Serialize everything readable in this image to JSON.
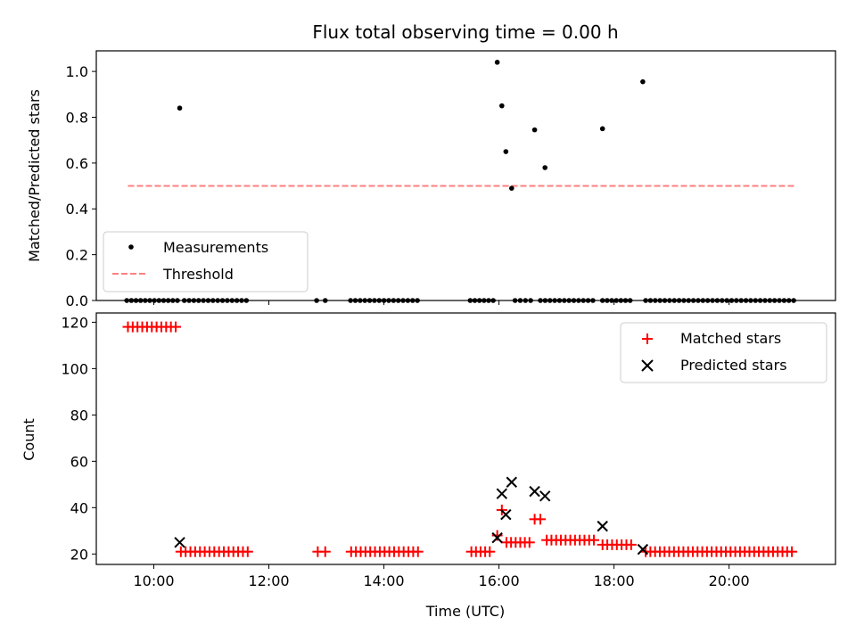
{
  "chart_data": [
    {
      "type": "scatter",
      "title": "Flux total observing time = 0.00 h",
      "xlabel": "",
      "ylabel": "Matched/Predicted stars",
      "ylim": [
        0,
        1.09
      ],
      "xlim": [
        9.0,
        21.85
      ],
      "x_ticks": [
        10,
        12,
        14,
        16,
        18,
        20
      ],
      "x_tick_labels": [],
      "y_ticks": [
        0.0,
        0.2,
        0.4,
        0.6,
        0.8,
        1.0
      ],
      "y_tick_labels": [
        "0.0",
        "0.2",
        "0.4",
        "0.6",
        "0.8",
        "1.0"
      ],
      "legend_position": "lower-left",
      "series": [
        {
          "name": "Measurements",
          "marker": "dot",
          "color": "#000000",
          "zero_runs": [
            [
              9.53,
              10.42,
              0.08
            ],
            [
              10.53,
              11.67,
              0.083
            ],
            [
              12.83,
              12.98,
              0.15
            ],
            [
              13.42,
              14.65,
              0.083
            ],
            [
              15.5,
              15.9,
              0.08
            ],
            [
              16.28,
              16.55,
              0.09
            ],
            [
              16.72,
              17.7,
              0.083
            ],
            [
              17.8,
              18.28,
              0.08
            ],
            [
              18.55,
              21.13,
              0.083
            ]
          ],
          "points": [
            [
              10.45,
              0.84
            ],
            [
              15.97,
              1.04
            ],
            [
              16.05,
              0.85
            ],
            [
              16.12,
              0.65
            ],
            [
              16.22,
              0.49
            ],
            [
              16.62,
              0.745
            ],
            [
              16.8,
              0.58
            ],
            [
              17.8,
              0.75
            ],
            [
              18.5,
              0.955
            ]
          ]
        },
        {
          "name": "Threshold",
          "marker": "dashed-line",
          "color": "#ff7f7f",
          "x": [
            9.55,
            21.15
          ],
          "y": [
            0.5,
            0.5
          ]
        }
      ]
    },
    {
      "type": "scatter",
      "title": "",
      "xlabel": "Time (UTC)",
      "ylabel": "Count",
      "ylim": [
        15.5,
        124
      ],
      "xlim": [
        9.0,
        21.85
      ],
      "x_ticks": [
        10,
        12,
        14,
        16,
        18,
        20
      ],
      "x_tick_labels": [
        "10:00",
        "12:00",
        "14:00",
        "16:00",
        "18:00",
        "20:00"
      ],
      "y_ticks": [
        20,
        40,
        60,
        80,
        100,
        120
      ],
      "y_tick_labels": [
        "20",
        "40",
        "60",
        "80",
        "100",
        "120"
      ],
      "legend_position": "upper-right",
      "series": [
        {
          "name": "Matched stars",
          "marker": "plus",
          "color": "#ff0000",
          "runs": [
            [
              9.55,
              10.38,
              0.083,
              118
            ],
            [
              10.47,
              11.65,
              0.083,
              21
            ],
            [
              12.85,
              12.98,
              0.13,
              21
            ],
            [
              13.43,
              14.63,
              0.083,
              21
            ],
            [
              15.52,
              15.9,
              0.08,
              21
            ],
            [
              16.13,
              16.55,
              0.08,
              25
            ],
            [
              16.83,
              17.73,
              0.082,
              26
            ],
            [
              17.8,
              18.3,
              0.083,
              24
            ],
            [
              18.55,
              21.12,
              0.082,
              21
            ]
          ],
          "points": [
            [
              15.97,
              28
            ],
            [
              16.05,
              39
            ],
            [
              16.62,
              35
            ],
            [
              16.72,
              35
            ]
          ]
        },
        {
          "name": "Predicted stars",
          "marker": "x",
          "color": "#000000",
          "points": [
            [
              10.45,
              25
            ],
            [
              15.97,
              27
            ],
            [
              16.05,
              46
            ],
            [
              16.12,
              37
            ],
            [
              16.22,
              51
            ],
            [
              16.62,
              47
            ],
            [
              16.8,
              45
            ],
            [
              17.8,
              32
            ],
            [
              18.5,
              22
            ]
          ]
        }
      ]
    }
  ]
}
